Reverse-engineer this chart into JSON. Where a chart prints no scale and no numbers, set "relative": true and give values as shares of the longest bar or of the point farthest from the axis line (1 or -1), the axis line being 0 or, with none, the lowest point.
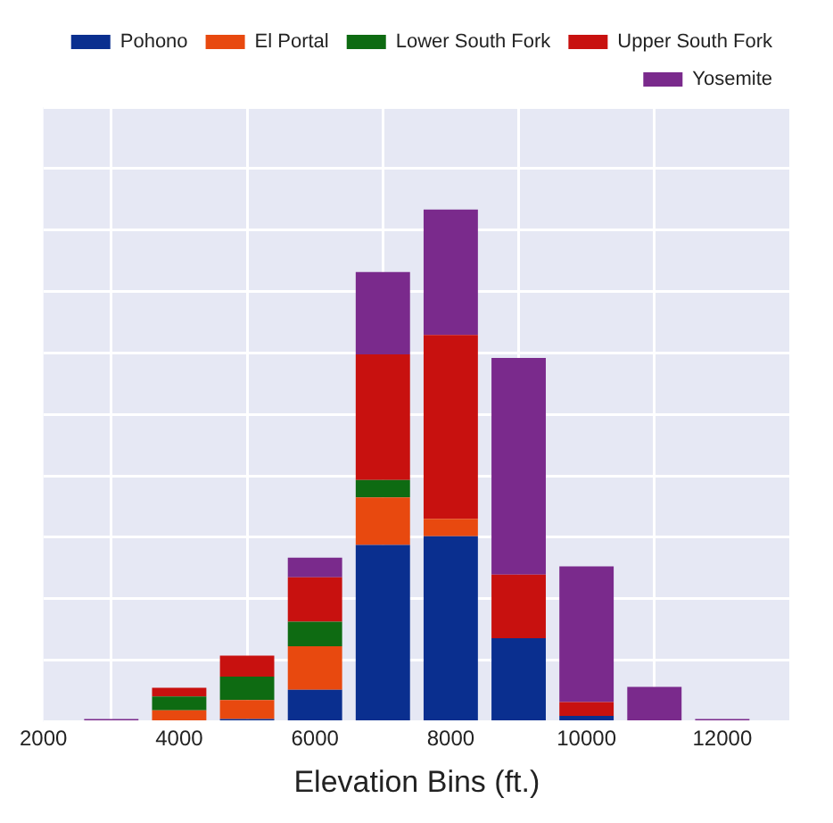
{
  "chart_data": {
    "type": "bar",
    "stacked": true,
    "relative": true,
    "xlabel": "Elevation Bins (ft.)",
    "x": [
      3000,
      4000,
      5000,
      6000,
      7000,
      8000,
      9000,
      10000,
      11000,
      12000
    ],
    "xlim": [
      2000,
      13000
    ],
    "xticks": [
      2000,
      4000,
      6000,
      8000,
      10000,
      12000
    ],
    "grid": true,
    "legend": "top right",
    "series": [
      {
        "name": "Pohono",
        "color": "#0a2f8f",
        "values": [
          0,
          0,
          0.005,
          0.062,
          0.345,
          0.362,
          0.163,
          0.011,
          0,
          0
        ]
      },
      {
        "name": "El Portal",
        "color": "#e8490f",
        "values": [
          0,
          0.022,
          0.037,
          0.085,
          0.093,
          0.034,
          0,
          0,
          0,
          0
        ]
      },
      {
        "name": "Lower South Fork",
        "color": "#0e6b12",
        "values": [
          0,
          0.027,
          0.046,
          0.048,
          0.034,
          0,
          0,
          0,
          0,
          0
        ]
      },
      {
        "name": "Upper South Fork",
        "color": "#c8110f",
        "values": [
          0,
          0.017,
          0.041,
          0.087,
          0.245,
          0.359,
          0.124,
          0.027,
          0,
          0
        ]
      },
      {
        "name": "Yosemite",
        "color": "#7a2a8c",
        "values": [
          0.005,
          0,
          0,
          0.038,
          0.161,
          0.245,
          0.423,
          0.265,
          0.068,
          0.005
        ]
      }
    ]
  }
}
